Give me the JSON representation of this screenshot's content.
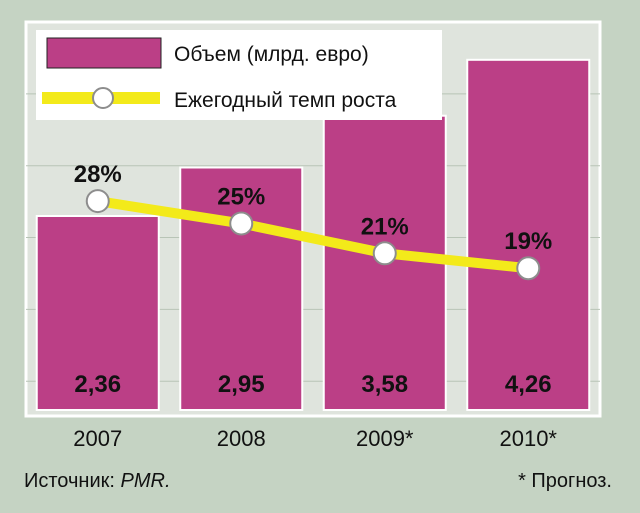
{
  "chart_data": {
    "type": "bar",
    "categories": [
      "2007",
      "2008",
      "2009*",
      "2010*"
    ],
    "series": [
      {
        "name": "Объем (млрд. евро)",
        "kind": "bar",
        "color": "#bb3f86",
        "values": [
          2.36,
          2.95,
          3.58,
          4.26
        ],
        "labels": [
          "2,36",
          "2,95",
          "3,58",
          "4,26"
        ]
      },
      {
        "name": "Ежегодный темп роста",
        "kind": "line",
        "color": "#f3ea1a",
        "values": [
          28,
          25,
          21,
          19
        ],
        "labels": [
          "28%",
          "25%",
          "21%",
          "19%"
        ]
      }
    ],
    "ylim": [
      0,
      4.72
    ],
    "line_ylim": [
      0,
      52
    ],
    "grid": true,
    "legend": "top-left"
  },
  "footer": {
    "source_label": "Источник:",
    "source_name": "PMR.",
    "note": "* Прогноз."
  }
}
